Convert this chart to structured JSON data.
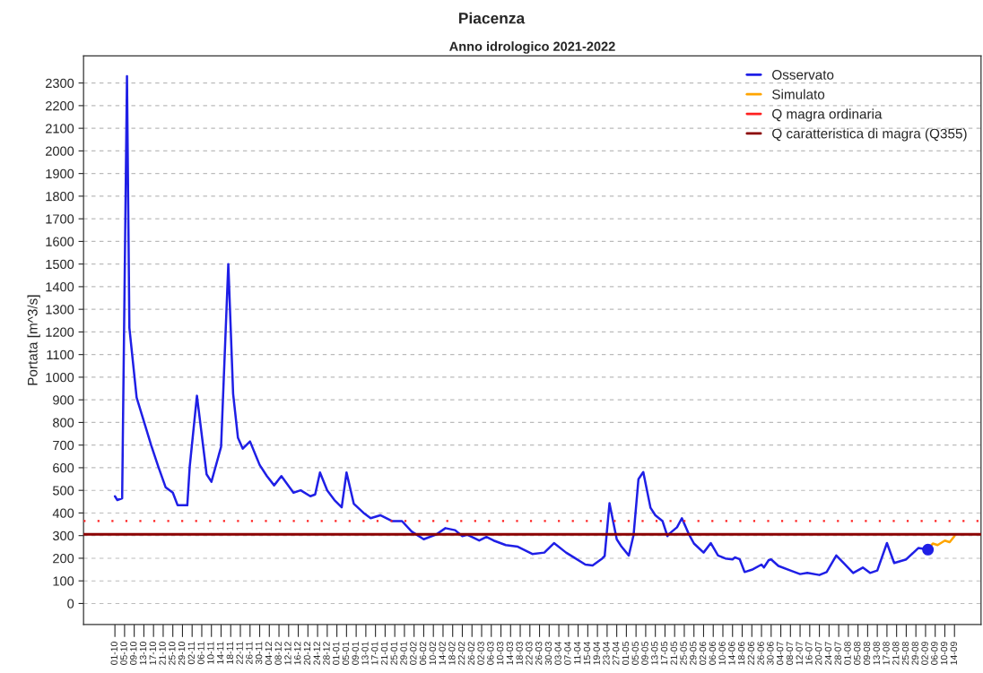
{
  "chart_data": {
    "type": "line",
    "title": "Piacenza",
    "subtitle": "Anno idrologico 2021-2022",
    "ylabel": "Portata [m^3/s]",
    "series": [
      {
        "name": "Osservato",
        "color": "#1f1fe6",
        "x": [
          "2021-10-01",
          "2021-10-02",
          "2021-10-04",
          "2021-10-06",
          "2021-10-07",
          "2021-10-10",
          "2021-10-16",
          "2021-10-19",
          "2021-10-22",
          "2021-10-25",
          "2021-10-27",
          "2021-10-31",
          "2021-11-01",
          "2021-11-04",
          "2021-11-08",
          "2021-11-10",
          "2021-11-14",
          "2021-11-17",
          "2021-11-19",
          "2021-11-21",
          "2021-11-23",
          "2021-11-26",
          "2021-11-30",
          "2021-12-03",
          "2021-12-06",
          "2021-12-09",
          "2021-12-14",
          "2021-12-17",
          "2021-12-21",
          "2021-12-23",
          "2021-12-25",
          "2021-12-28",
          "2021-12-31",
          "2022-01-03",
          "2022-01-05",
          "2022-01-08",
          "2022-01-12",
          "2022-01-15",
          "2022-01-19",
          "2022-01-24",
          "2022-01-28",
          "2022-02-01",
          "2022-02-06",
          "2022-02-11",
          "2022-02-15",
          "2022-02-19",
          "2022-02-22",
          "2022-02-24",
          "2022-03-01",
          "2022-03-04",
          "2022-03-07",
          "2022-03-12",
          "2022-03-17",
          "2022-03-23",
          "2022-03-28",
          "2022-04-01",
          "2022-04-06",
          "2022-04-09",
          "2022-04-14",
          "2022-04-17",
          "2022-04-21",
          "2022-04-22",
          "2022-04-24",
          "2022-04-27",
          "2022-04-29",
          "2022-05-02",
          "2022-05-04",
          "2022-05-06",
          "2022-05-08",
          "2022-05-11",
          "2022-05-13",
          "2022-05-16",
          "2022-05-18",
          "2022-05-19",
          "2022-05-22",
          "2022-05-24",
          "2022-05-27",
          "2022-05-29",
          "2022-06-02",
          "2022-06-05",
          "2022-06-08",
          "2022-06-11",
          "2022-06-14",
          "2022-06-15",
          "2022-06-17",
          "2022-06-19",
          "2022-06-22",
          "2022-06-26",
          "2022-06-27",
          "2022-06-29",
          "2022-06-30",
          "2022-07-03",
          "2022-07-08",
          "2022-07-12",
          "2022-07-15",
          "2022-07-20",
          "2022-07-23",
          "2022-07-27",
          "2022-07-30",
          "2022-08-03",
          "2022-08-07",
          "2022-08-10",
          "2022-08-13",
          "2022-08-17",
          "2022-08-20",
          "2022-08-25",
          "2022-08-30",
          "2022-09-03"
        ],
        "values": [
          474,
          457,
          465,
          2330,
          1218,
          910,
          700,
          604,
          514,
          490,
          434,
          434,
          604,
          918,
          571,
          538,
          692,
          1500,
          926,
          732,
          684,
          716,
          612,
          563,
          522,
          563,
          490,
          500,
          474,
          482,
          579,
          500,
          457,
          425,
          579,
          441,
          401,
          377,
          390,
          364,
          364,
          318,
          284,
          304,
          333,
          324,
          298,
          304,
          278,
          294,
          278,
          258,
          251,
          219,
          225,
          267,
          225,
          205,
          172,
          168,
          199,
          210,
          443,
          284,
          251,
          212,
          304,
          549,
          581,
          423,
          390,
          364,
          298,
          310,
          337,
          377,
          304,
          265,
          225,
          267,
          212,
          199,
          195,
          204,
          195,
          139,
          149,
          172,
          159,
          192,
          195,
          166,
          146,
          130,
          135,
          126,
          139,
          212,
          179,
          135,
          159,
          135,
          146,
          267,
          179,
          195,
          245,
          238
        ]
      },
      {
        "name": "Simulato",
        "color": "#ffa500",
        "x": [
          "2022-09-03",
          "2022-09-05",
          "2022-09-07",
          "2022-09-10",
          "2022-09-12",
          "2022-09-14"
        ],
        "values": [
          238,
          265,
          258,
          278,
          271,
          298
        ]
      },
      {
        "type": "scatter",
        "marker": "circle",
        "color": "#1f1fe6",
        "x": [
          "2022-09-03"
        ],
        "values": [
          238
        ]
      }
    ],
    "ref_lines": [
      {
        "axis": "y",
        "value": 365,
        "label": "Q magra ordinaria",
        "color": "#ff2020",
        "line_style": "dotted"
      },
      {
        "axis": "y",
        "value": 306,
        "label": "Q caratteristica di magra (Q355)",
        "color": "#8b0000",
        "line_style": "solid"
      }
    ],
    "ylim": [
      -93,
      2420
    ],
    "yticks": [
      0,
      100,
      200,
      300,
      400,
      500,
      600,
      700,
      800,
      900,
      1000,
      1100,
      1200,
      1300,
      1400,
      1500,
      1600,
      1700,
      1800,
      1900,
      2000,
      2100,
      2200,
      2300
    ],
    "xlim": [
      "2021-09-18",
      "2022-09-25"
    ],
    "xticks": [
      {
        "value": "2021-10-01",
        "label": "01-10"
      },
      {
        "value": "2021-10-05",
        "label": "05-10"
      },
      {
        "value": "2021-10-09",
        "label": "09-10"
      },
      {
        "value": "2021-10-13",
        "label": "13-10"
      },
      {
        "value": "2021-10-17",
        "label": "17-10"
      },
      {
        "value": "2021-10-21",
        "label": "21-10"
      },
      {
        "value": "2021-10-25",
        "label": "25-10"
      },
      {
        "value": "2021-10-29",
        "label": "29-10"
      },
      {
        "value": "2021-11-02",
        "label": "02-11"
      },
      {
        "value": "2021-11-06",
        "label": "06-11"
      },
      {
        "value": "2021-11-10",
        "label": "10-11"
      },
      {
        "value": "2021-11-14",
        "label": "14-11"
      },
      {
        "value": "2021-11-18",
        "label": "18-11"
      },
      {
        "value": "2021-11-22",
        "label": "22-11"
      },
      {
        "value": "2021-11-26",
        "label": "26-11"
      },
      {
        "value": "2021-11-30",
        "label": "30-11"
      },
      {
        "value": "2021-12-04",
        "label": "04-12"
      },
      {
        "value": "2021-12-08",
        "label": "08-12"
      },
      {
        "value": "2021-12-12",
        "label": "12-12"
      },
      {
        "value": "2021-12-16",
        "label": "16-12"
      },
      {
        "value": "2021-12-20",
        "label": "20-12"
      },
      {
        "value": "2021-12-24",
        "label": "24-12"
      },
      {
        "value": "2021-12-28",
        "label": "28-12"
      },
      {
        "value": "2022-01-01",
        "label": "01-01"
      },
      {
        "value": "2022-01-05",
        "label": "05-01"
      },
      {
        "value": "2022-01-09",
        "label": "09-01"
      },
      {
        "value": "2022-01-13",
        "label": "13-01"
      },
      {
        "value": "2022-01-17",
        "label": "17-01"
      },
      {
        "value": "2022-01-21",
        "label": "21-01"
      },
      {
        "value": "2022-01-25",
        "label": "25-01"
      },
      {
        "value": "2022-01-29",
        "label": "29-01"
      },
      {
        "value": "2022-02-02",
        "label": "02-02"
      },
      {
        "value": "2022-02-06",
        "label": "06-02"
      },
      {
        "value": "2022-02-10",
        "label": "10-02"
      },
      {
        "value": "2022-02-14",
        "label": "14-02"
      },
      {
        "value": "2022-02-18",
        "label": "18-02"
      },
      {
        "value": "2022-02-22",
        "label": "22-02"
      },
      {
        "value": "2022-02-26",
        "label": "26-02"
      },
      {
        "value": "2022-03-02",
        "label": "02-03"
      },
      {
        "value": "2022-03-06",
        "label": "06-03"
      },
      {
        "value": "2022-03-10",
        "label": "10-03"
      },
      {
        "value": "2022-03-14",
        "label": "14-03"
      },
      {
        "value": "2022-03-18",
        "label": "18-03"
      },
      {
        "value": "2022-03-22",
        "label": "22-03"
      },
      {
        "value": "2022-03-26",
        "label": "26-03"
      },
      {
        "value": "2022-03-30",
        "label": "30-03"
      },
      {
        "value": "2022-04-03",
        "label": "03-04"
      },
      {
        "value": "2022-04-07",
        "label": "07-04"
      },
      {
        "value": "2022-04-11",
        "label": "11-04"
      },
      {
        "value": "2022-04-15",
        "label": "15-04"
      },
      {
        "value": "2022-04-19",
        "label": "19-04"
      },
      {
        "value": "2022-04-23",
        "label": "23-04"
      },
      {
        "value": "2022-04-27",
        "label": "27-04"
      },
      {
        "value": "2022-05-01",
        "label": "01-05"
      },
      {
        "value": "2022-05-05",
        "label": "05-05"
      },
      {
        "value": "2022-05-09",
        "label": "09-05"
      },
      {
        "value": "2022-05-13",
        "label": "13-05"
      },
      {
        "value": "2022-05-17",
        "label": "17-05"
      },
      {
        "value": "2022-05-21",
        "label": "21-05"
      },
      {
        "value": "2022-05-25",
        "label": "25-05"
      },
      {
        "value": "2022-05-29",
        "label": "29-05"
      },
      {
        "value": "2022-06-02",
        "label": "02-06"
      },
      {
        "value": "2022-06-06",
        "label": "06-06"
      },
      {
        "value": "2022-06-10",
        "label": "10-06"
      },
      {
        "value": "2022-06-14",
        "label": "14-06"
      },
      {
        "value": "2022-06-18",
        "label": "18-06"
      },
      {
        "value": "2022-06-22",
        "label": "22-06"
      },
      {
        "value": "2022-06-26",
        "label": "26-06"
      },
      {
        "value": "2022-06-30",
        "label": "30-06"
      },
      {
        "value": "2022-07-04",
        "label": "04-07"
      },
      {
        "value": "2022-07-08",
        "label": "08-07"
      },
      {
        "value": "2022-07-12",
        "label": "12-07"
      },
      {
        "value": "2022-07-16",
        "label": "16-07"
      },
      {
        "value": "2022-07-20",
        "label": "20-07"
      },
      {
        "value": "2022-07-24",
        "label": "24-07"
      },
      {
        "value": "2022-07-28",
        "label": "28-07"
      },
      {
        "value": "2022-08-01",
        "label": "01-08"
      },
      {
        "value": "2022-08-05",
        "label": "05-08"
      },
      {
        "value": "2022-08-09",
        "label": "09-08"
      },
      {
        "value": "2022-08-13",
        "label": "13-08"
      },
      {
        "value": "2022-08-17",
        "label": "17-08"
      },
      {
        "value": "2022-08-21",
        "label": "21-08"
      },
      {
        "value": "2022-08-25",
        "label": "25-08"
      },
      {
        "value": "2022-08-29",
        "label": "29-08"
      },
      {
        "value": "2022-09-02",
        "label": "02-09"
      },
      {
        "value": "2022-09-06",
        "label": "06-09"
      },
      {
        "value": "2022-09-10",
        "label": "10-09"
      },
      {
        "value": "2022-09-14",
        "label": "14-09"
      }
    ],
    "grid": "y",
    "legend": "top right"
  }
}
